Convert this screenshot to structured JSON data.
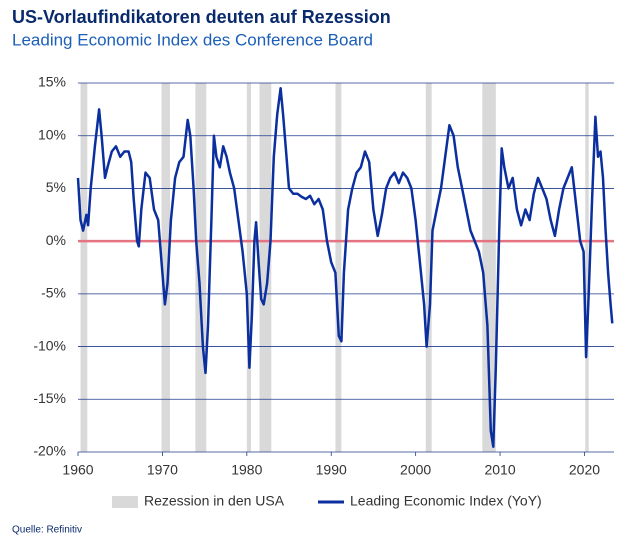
{
  "chart_data": {
    "type": "line",
    "title": "US-Vorlaufindikatoren deuten auf Rezession",
    "subtitle": "Leading Economic Index des Conference Board",
    "source": "Quelle: Refinitiv",
    "x": [
      1960,
      1960.3,
      1960.6,
      1961,
      1961.2,
      1961.5,
      1962,
      1962.5,
      1962.8,
      1963.2,
      1963.5,
      1964,
      1964.5,
      1965,
      1965.5,
      1966,
      1966.3,
      1966.6,
      1967,
      1967.2,
      1967.5,
      1968,
      1968.5,
      1969,
      1969.5,
      1970,
      1970.3,
      1970.6,
      1971,
      1971.5,
      1972,
      1972.5,
      1973,
      1973.3,
      1973.7,
      1974,
      1974.4,
      1974.8,
      1975.1,
      1975.4,
      1975.8,
      1976.1,
      1976.4,
      1976.8,
      1977.2,
      1977.6,
      1978,
      1978.5,
      1979,
      1979.5,
      1980,
      1980.3,
      1980.6,
      1980.9,
      1981.1,
      1981.4,
      1981.7,
      1982,
      1982.4,
      1982.8,
      1983.2,
      1983.6,
      1984,
      1984.3,
      1984.7,
      1985,
      1985.5,
      1986,
      1986.5,
      1987,
      1987.5,
      1988,
      1988.5,
      1989,
      1989.5,
      1990,
      1990.5,
      1990.9,
      1991.2,
      1991.5,
      1992,
      1992.5,
      1993,
      1993.5,
      1994,
      1994.5,
      1995,
      1995.5,
      1996,
      1996.5,
      1997,
      1997.5,
      1998,
      1998.5,
      1999,
      1999.5,
      2000,
      2000.5,
      2001,
      2001.3,
      2001.7,
      2002,
      2002.5,
      2003,
      2003.5,
      2004,
      2004.5,
      2005,
      2005.5,
      2006,
      2006.5,
      2007,
      2007.5,
      2008,
      2008.5,
      2008.9,
      2009.2,
      2009.5,
      2009.9,
      2010.2,
      2010.5,
      2011,
      2011.5,
      2012,
      2012.5,
      2013,
      2013.5,
      2014,
      2014.5,
      2015,
      2015.5,
      2016,
      2016.5,
      2017,
      2017.5,
      2018,
      2018.5,
      2019,
      2019.5,
      2019.9,
      2020.2,
      2020.5,
      2020.9,
      2021.3,
      2021.6,
      2021.9,
      2022.2,
      2022.5,
      2022.8,
      2023.1,
      2023.3
    ],
    "series": [
      {
        "name": "Leading Economic Index (YoY)",
        "color": "#0b2f9e",
        "values": [
          6,
          2,
          1,
          2.5,
          1.5,
          5,
          9,
          12.5,
          10,
          6,
          7,
          8.5,
          9,
          8,
          8.5,
          8.5,
          7.5,
          4,
          0,
          -0.5,
          3,
          6.5,
          6,
          3,
          2,
          -3,
          -6,
          -4,
          2,
          6,
          7.5,
          8,
          11.5,
          10,
          5,
          0,
          -4,
          -10,
          -12.5,
          -8,
          2,
          10,
          8,
          7,
          9,
          8,
          6.5,
          5,
          2,
          -1,
          -5,
          -12,
          -7,
          0,
          1.8,
          -2,
          -5.5,
          -6,
          -4,
          0,
          8,
          12,
          14.5,
          12,
          8,
          5,
          4.5,
          4.5,
          4.2,
          4,
          4.3,
          3.5,
          4,
          3,
          0,
          -2,
          -3,
          -9,
          -9.5,
          -3,
          3,
          5,
          6.5,
          7,
          8.5,
          7.5,
          3,
          0.5,
          2.5,
          5,
          6,
          6.5,
          5.5,
          6.5,
          6,
          5,
          2,
          -2,
          -6,
          -10,
          -6,
          1,
          3,
          5,
          8,
          11,
          10,
          7,
          5,
          3,
          1,
          0,
          -1,
          -3,
          -8,
          -18,
          -19.5,
          -12,
          1,
          8.8,
          7,
          5,
          6,
          3,
          1.5,
          3,
          2,
          4.5,
          6,
          5,
          4,
          2,
          0.5,
          3,
          5,
          6,
          7,
          3.5,
          0,
          -1,
          -11,
          -5,
          4,
          11.8,
          8,
          8.5,
          6,
          1,
          -3,
          -6,
          -7.8
        ]
      }
    ],
    "recessions": {
      "name": "Rezession in den USA",
      "color": "#d9d9d9",
      "ranges": [
        [
          1960.3,
          1961.1
        ],
        [
          1969.9,
          1970.9
        ],
        [
          1973.9,
          1975.2
        ],
        [
          1980.0,
          1980.5
        ],
        [
          1981.5,
          1982.9
        ],
        [
          1990.5,
          1991.2
        ],
        [
          2001.2,
          2001.9
        ],
        [
          2007.9,
          2009.5
        ],
        [
          2020.1,
          2020.5
        ]
      ]
    },
    "reference_line": {
      "value": 0,
      "color": "#e57380"
    },
    "xlim": [
      1960,
      2023.5
    ],
    "xticks": [
      1960,
      1970,
      1980,
      1990,
      2000,
      2010,
      2020
    ],
    "ylim": [
      -20,
      15
    ],
    "yticks": [
      {
        "value": -20,
        "label": "-20%"
      },
      {
        "value": -15,
        "label": "-15%"
      },
      {
        "value": -10,
        "label": "-10%"
      },
      {
        "value": -5,
        "label": "-5%"
      },
      {
        "value": 0,
        "label": "0%"
      },
      {
        "value": 5,
        "label": "5%"
      },
      {
        "value": 10,
        "label": "10%"
      },
      {
        "value": 15,
        "label": "15%"
      }
    ],
    "grid": true,
    "grid_color": "#1f3b8c",
    "legend": "bottom"
  }
}
